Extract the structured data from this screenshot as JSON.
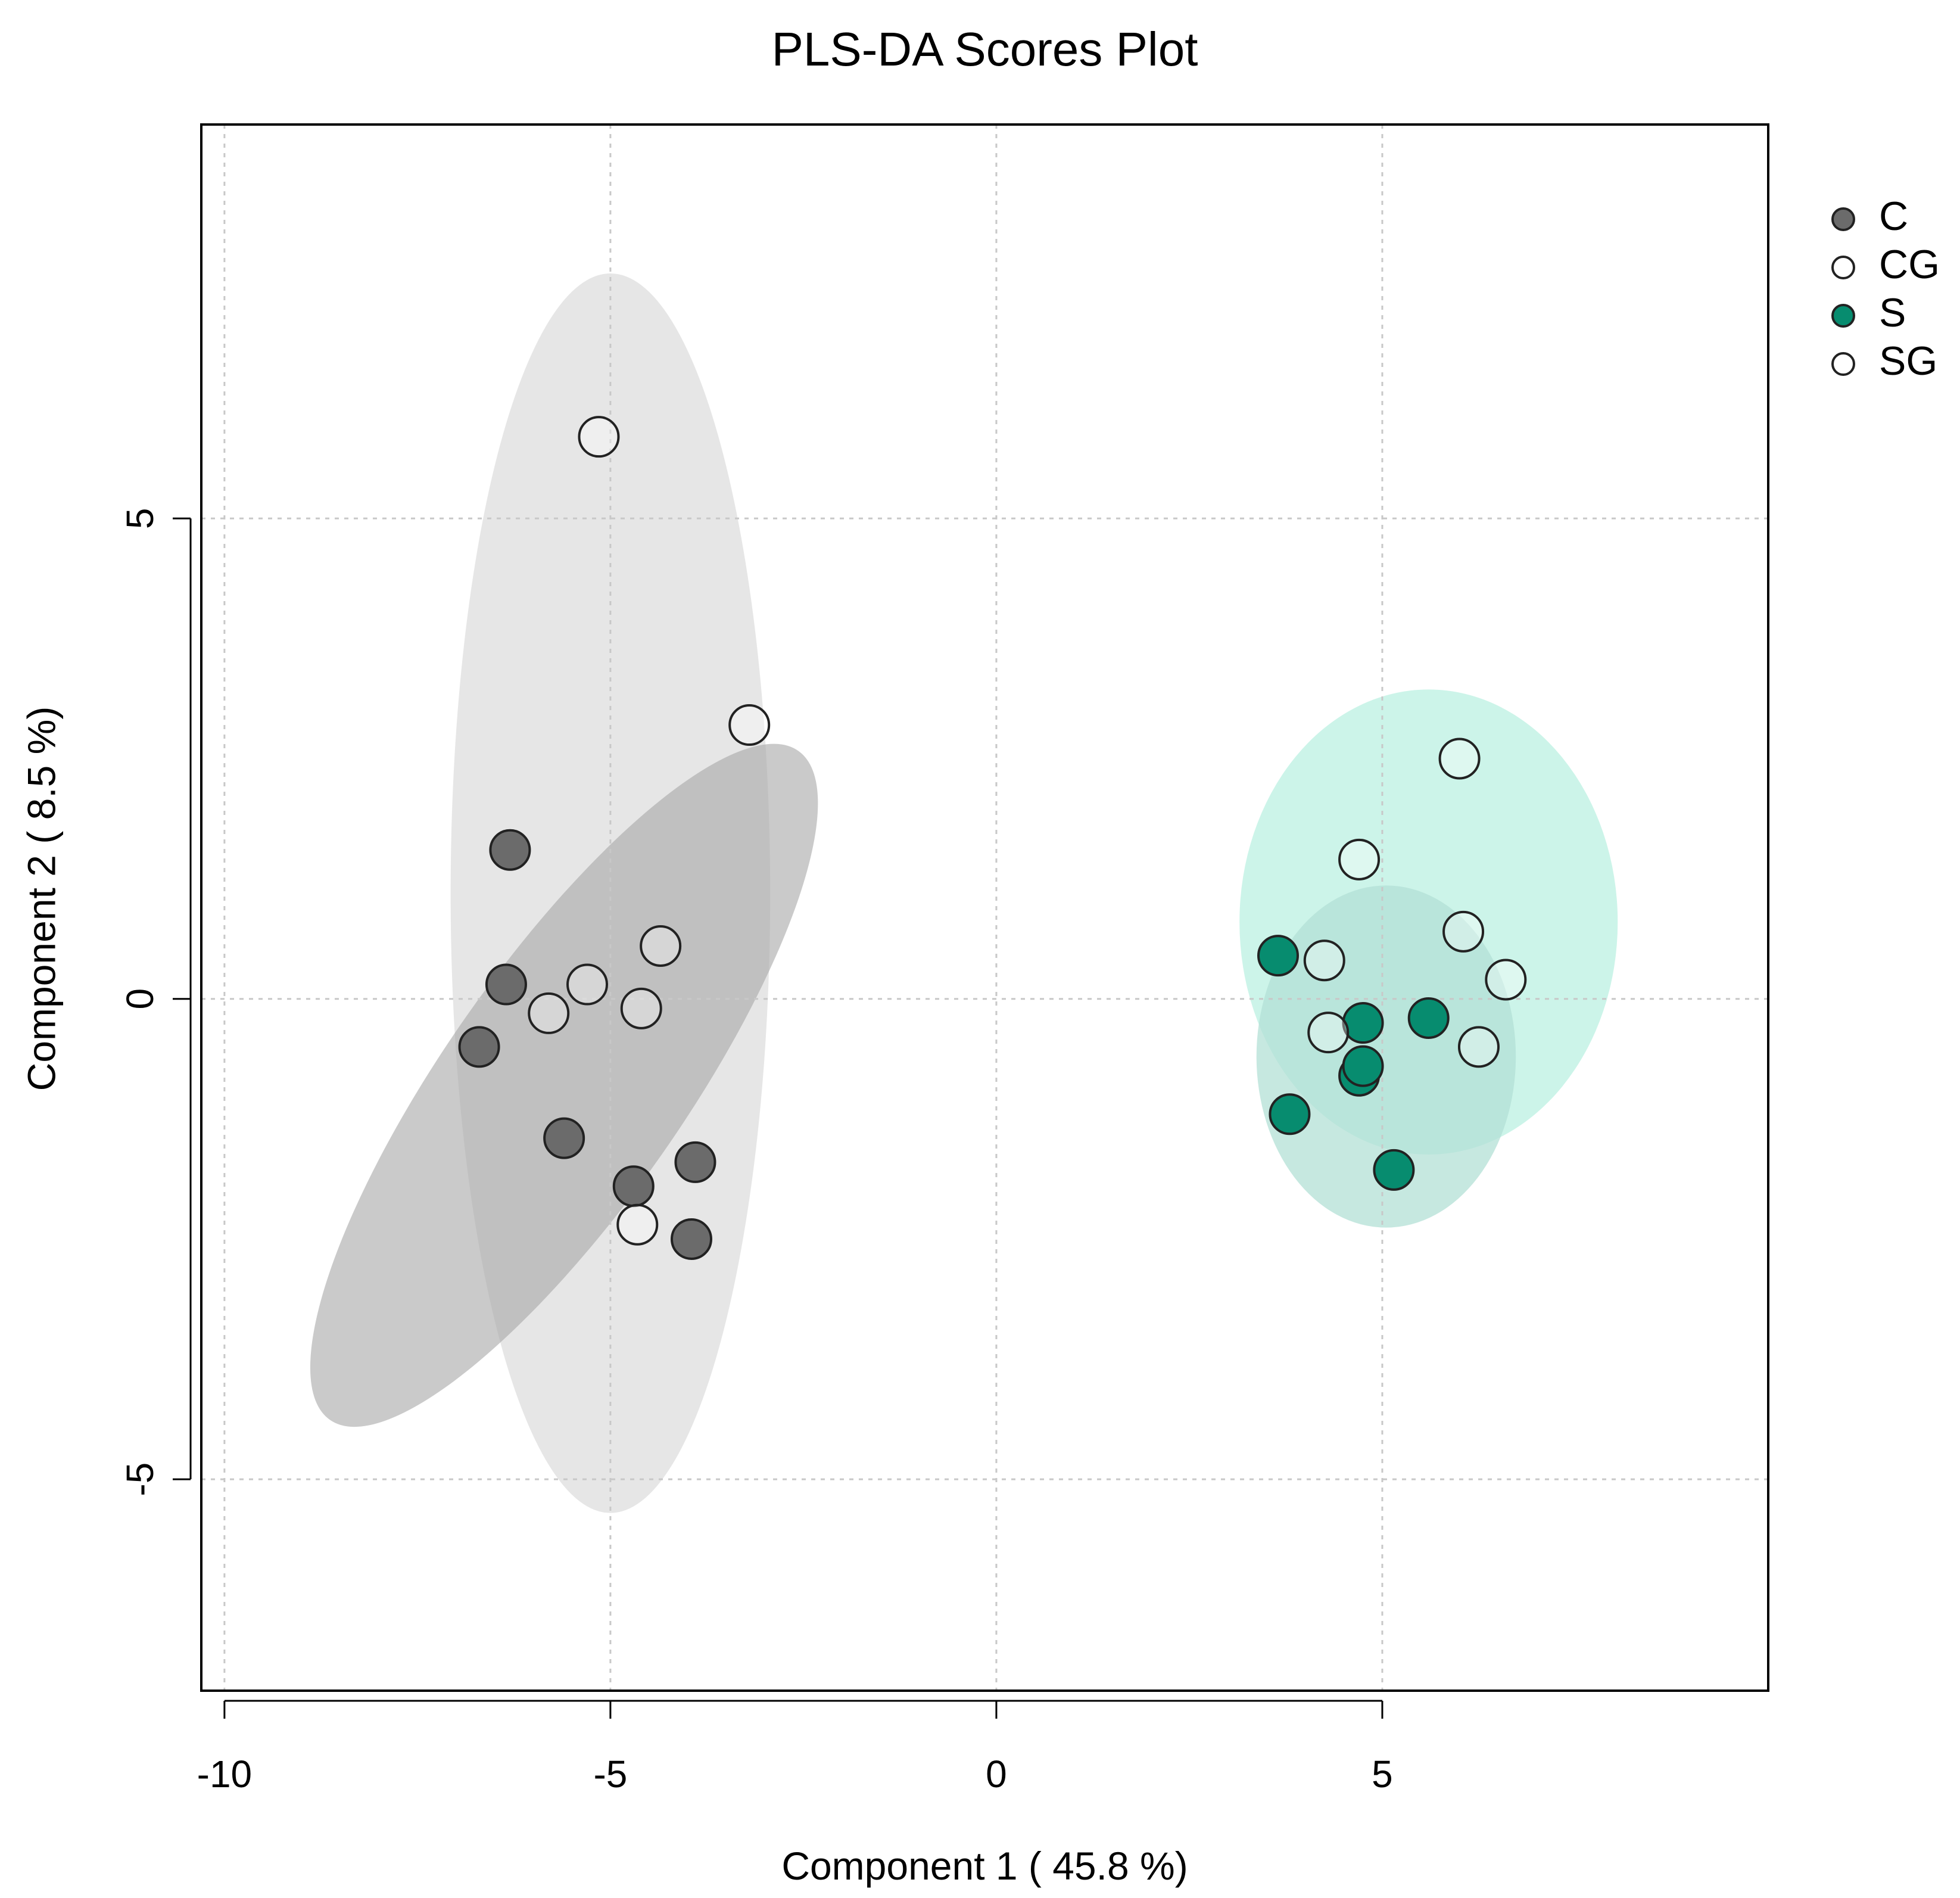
{
  "chart_data": {
    "type": "scatter",
    "title": "PLS-DA Scores Plot",
    "xlabel": "Component 1 ( 45.8 %)",
    "ylabel": "Component 2 ( 8.5 %)",
    "xlim": [
      -10.3,
      10.0
    ],
    "ylim": [
      -7.2,
      9.1
    ],
    "xticks": [
      -10,
      -5,
      0,
      5
    ],
    "xtick_labels": [
      "-10",
      "-5",
      "0",
      "5"
    ],
    "yticks": [
      -5,
      0,
      5
    ],
    "ytick_labels": [
      "-5",
      "0",
      "5"
    ],
    "grid": true,
    "legend_position": "right-top",
    "series": [
      {
        "name": "C",
        "color": "#6b6b6b",
        "ellipse_color": "#a6a6a6",
        "ellipse_opacity": 0.6,
        "ellipse": {
          "cx": -5.6,
          "cy": -0.9,
          "rx": 1.55,
          "ry": 4.25,
          "angle_deg": 35
        },
        "points": [
          {
            "x": -6.3,
            "y": 1.55
          },
          {
            "x": -6.35,
            "y": 0.15
          },
          {
            "x": -6.7,
            "y": -0.5
          },
          {
            "x": -5.6,
            "y": -1.45
          },
          {
            "x": -4.7,
            "y": -1.95
          },
          {
            "x": -3.9,
            "y": -1.7
          },
          {
            "x": -3.95,
            "y": -2.5
          }
        ]
      },
      {
        "name": "CG",
        "color": "#ffffff",
        "ellipse_color": "#d9d9d9",
        "ellipse_opacity": 0.65,
        "ellipse": {
          "cx": -5.0,
          "cy": 1.1,
          "rx": 2.07,
          "ry": 6.45,
          "angle_deg": 0
        },
        "points": [
          {
            "x": -5.15,
            "y": 5.85
          },
          {
            "x": -3.2,
            "y": 2.85
          },
          {
            "x": -4.35,
            "y": 0.55
          },
          {
            "x": -5.3,
            "y": 0.15
          },
          {
            "x": -5.8,
            "y": -0.15
          },
          {
            "x": -4.6,
            "y": -0.1
          },
          {
            "x": -4.65,
            "y": -2.35
          }
        ]
      },
      {
        "name": "S",
        "color": "#078c6f",
        "ellipse_color": "#b3e0d6",
        "ellipse_opacity": 0.75,
        "ellipse": {
          "cx": 5.05,
          "cy": -0.6,
          "rx": 1.68,
          "ry": 1.78,
          "angle_deg": 0
        },
        "points": [
          {
            "x": 3.65,
            "y": 0.45
          },
          {
            "x": 4.75,
            "y": -0.25
          },
          {
            "x": 5.6,
            "y": -0.2
          },
          {
            "x": 4.7,
            "y": -0.8
          },
          {
            "x": 4.75,
            "y": -0.7
          },
          {
            "x": 3.8,
            "y": -1.2
          },
          {
            "x": 5.15,
            "y": -1.78
          }
        ]
      },
      {
        "name": "SG",
        "color": "#ffffff",
        "ellipse_color": "#b8f0e0",
        "ellipse_opacity": 0.72,
        "ellipse": {
          "cx": 5.6,
          "cy": 0.8,
          "rx": 2.45,
          "ry": 2.42,
          "angle_deg": 0
        },
        "points": [
          {
            "x": 6.0,
            "y": 2.5
          },
          {
            "x": 4.7,
            "y": 1.45
          },
          {
            "x": 6.05,
            "y": 0.7
          },
          {
            "x": 6.6,
            "y": 0.2
          },
          {
            "x": 4.25,
            "y": 0.4
          },
          {
            "x": 4.3,
            "y": -0.35
          },
          {
            "x": 6.25,
            "y": -0.5
          }
        ]
      }
    ]
  }
}
